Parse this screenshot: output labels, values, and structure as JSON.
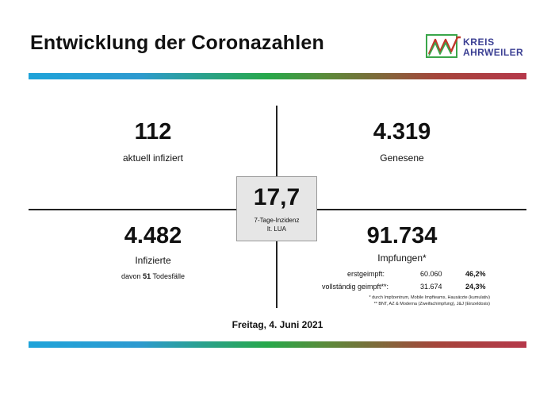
{
  "header": {
    "title": "Entwicklung der Coronazahlen",
    "logo": {
      "line1": "KREIS",
      "line2": "AHRWEILER",
      "colors": {
        "green": "#3aa64a",
        "red": "#c0392b",
        "blue": "#3b3f93"
      }
    }
  },
  "quadrants": {
    "active": {
      "value": "112",
      "label": "aktuell infiziert"
    },
    "recovered": {
      "value": "4.319",
      "label": "Genesene"
    },
    "infected": {
      "value": "4.482",
      "label": "Infizierte",
      "deaths_prefix": "davon",
      "deaths_value": "51",
      "deaths_suffix": "Todesfälle"
    },
    "vaccinations": {
      "value": "91.734",
      "label": "Impfungen*",
      "rows": [
        {
          "label": "erstgeimpft:",
          "count": "60.060",
          "percent": "46,2%"
        },
        {
          "label": "vollständig geimpft**:",
          "count": "31.674",
          "percent": "24,3%"
        }
      ],
      "footnotes": [
        "* durch Impfzentrum, Mobile Impfteams, Hausärzte (kumulativ)",
        "** BNT, AZ & Moderna (Zweifachimpfung), J&J (Einzeldosis)"
      ]
    }
  },
  "incidence": {
    "value": "17,7",
    "label1": "7-Tage-Inzidenz",
    "label2": "lt. LUA"
  },
  "date": "Freitag, 4. Juni 2021"
}
